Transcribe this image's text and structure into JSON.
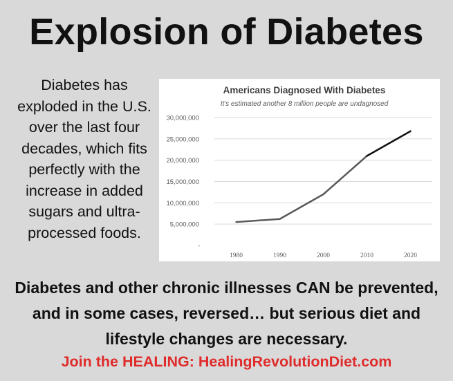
{
  "title": "Explosion of Diabetes",
  "intro_text": "Diabetes has exploded in the U.S. over the last four decades, which fits perfectly with the increase in added sugars and ultra-processed foods.",
  "chart_data": {
    "type": "line",
    "title": "Americans Diagnosed With Diabetes",
    "subtitle": "It's estimated another 8 million people are undagnosed",
    "categories": [
      "1980",
      "1990",
      "2000",
      "2010",
      "2020"
    ],
    "series": [
      {
        "name": "Americans Diagnosed With Diabetes",
        "values": [
          5500000,
          6200000,
          12000000,
          21000000,
          26800000
        ]
      }
    ],
    "y_ticks": [
      "30,000,000",
      "25,000,000",
      "20,000,000",
      "15,000,000",
      "10,000,000",
      "5,000,000",
      "-"
    ],
    "ylim": [
      0,
      30000000
    ],
    "xlabel": "",
    "ylabel": "",
    "grid": true,
    "colors": {
      "line_early": "#5a5a5a",
      "line_recent": "#111111",
      "grid": "#d9d9d9",
      "axis_text": "#595959",
      "title": "#404040"
    }
  },
  "bottom_text": "Diabetes and other chronic illnesses CAN be prevented, and in some cases, reversed… but serious diet and lifestyle changes are necessary.",
  "cta_text": "Join the HEALING: HealingRevolutionDiet.com",
  "colors": {
    "background": "#d9d9d9",
    "cta": "#e02b2b"
  }
}
